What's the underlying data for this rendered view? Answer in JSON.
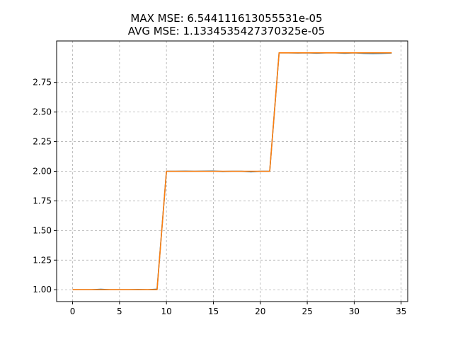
{
  "chart_data": {
    "type": "line",
    "title_lines": [
      "MAX MSE: 6.544111613055531e-05",
      "AVG MSE: 1.1334535427370325e-05"
    ],
    "xlabel": "",
    "ylabel": "",
    "xlim": [
      -1.7,
      35.7
    ],
    "ylim": [
      0.9,
      3.1
    ],
    "x_ticks": [
      0,
      5,
      10,
      15,
      20,
      25,
      30,
      35
    ],
    "y_ticks": [
      1.0,
      1.25,
      1.5,
      1.75,
      2.0,
      2.25,
      2.5,
      2.75
    ],
    "y_tick_labels": [
      "1.00",
      "1.25",
      "1.50",
      "1.75",
      "2.00",
      "2.25",
      "2.50",
      "2.75"
    ],
    "grid": true,
    "legend": false,
    "x": [
      0,
      1,
      2,
      3,
      4,
      5,
      6,
      7,
      8,
      9,
      10,
      11,
      12,
      13,
      14,
      15,
      16,
      17,
      18,
      19,
      20,
      21,
      22,
      23,
      24,
      25,
      26,
      27,
      28,
      29,
      30,
      31,
      32,
      33,
      34
    ],
    "series": [
      {
        "color": "#1f77b4",
        "values": [
          1.0,
          1.0,
          1.0,
          1.004,
          1.0,
          1.0,
          1.0,
          1.002,
          1.0,
          1.005,
          2.0,
          2.0,
          2.001,
          2.0,
          2.001,
          2.002,
          1.998,
          2.0,
          2.0,
          1.995,
          2.0,
          2.0,
          3.0,
          3.0,
          2.998,
          3.0,
          2.997,
          3.0,
          3.0,
          2.996,
          3.0,
          2.995,
          2.994,
          2.995,
          2.998
        ]
      },
      {
        "color": "#ff7f0e",
        "values": [
          1.0,
          1.0,
          1.0,
          1.0,
          1.0,
          1.0,
          1.0,
          1.0,
          1.0,
          1.0,
          2.0,
          2.0,
          2.0,
          2.0,
          2.0,
          2.0,
          2.0,
          2.0,
          2.0,
          2.0,
          2.0,
          2.0,
          3.0,
          3.0,
          3.0,
          3.0,
          3.0,
          3.0,
          3.0,
          3.0,
          3.0,
          3.0,
          3.0,
          3.0,
          3.0
        ]
      }
    ]
  }
}
